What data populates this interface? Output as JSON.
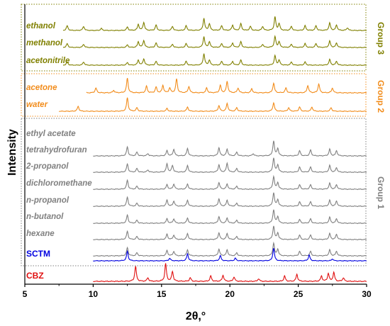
{
  "chart_data": {
    "type": "line",
    "xlabel": "2θ,°",
    "ylabel": "Intensity",
    "xlim": [
      5,
      30
    ],
    "xticks": [
      5,
      10,
      15,
      20,
      25,
      30
    ],
    "colors": {
      "group3": "#808000",
      "group2": "#f28c1b",
      "group1": "#808080",
      "SCTM": "#0000e0",
      "CBZ": "#e01010"
    },
    "groups": [
      {
        "name": "Group 3",
        "color": "#808000",
        "series": [
          "ethanol",
          "methanol",
          "acetonitrile"
        ]
      },
      {
        "name": "Group 2",
        "color": "#f28c1b",
        "series": [
          "acetone",
          "water"
        ]
      },
      {
        "name": "Group 1",
        "color": "#808080",
        "series": [
          "ethyl acetate",
          "tetrahydrofuran",
          "2-propanol",
          "dichloromethane",
          "n-propanol",
          "n-butanol",
          "hexane"
        ]
      }
    ],
    "series": [
      {
        "name": "ethanol",
        "color": "#808000",
        "start": 7.8,
        "peaks": [
          [
            8.1,
            0.35
          ],
          [
            9.3,
            0.3
          ],
          [
            10.6,
            0.15
          ],
          [
            12.5,
            0.25
          ],
          [
            13.3,
            0.45
          ],
          [
            13.7,
            0.6
          ],
          [
            14.6,
            0.4
          ],
          [
            15.8,
            0.3
          ],
          [
            16.8,
            0.35
          ],
          [
            18.1,
            0.9
          ],
          [
            18.5,
            0.5
          ],
          [
            19.4,
            0.35
          ],
          [
            20.2,
            0.4
          ],
          [
            20.8,
            0.5
          ],
          [
            21.5,
            0.3
          ],
          [
            22.4,
            0.3
          ],
          [
            23.3,
            1.0
          ],
          [
            23.6,
            0.5
          ],
          [
            24.5,
            0.3
          ],
          [
            25.5,
            0.35
          ],
          [
            26.3,
            0.35
          ],
          [
            27.3,
            0.55
          ],
          [
            27.8,
            0.4
          ],
          [
            28.6,
            0.2
          ]
        ]
      },
      {
        "name": "methanol",
        "color": "#808000",
        "start": 7.8,
        "peaks": [
          [
            8.1,
            0.3
          ],
          [
            9.3,
            0.25
          ],
          [
            12.5,
            0.2
          ],
          [
            13.3,
            0.45
          ],
          [
            13.7,
            0.55
          ],
          [
            14.6,
            0.35
          ],
          [
            15.8,
            0.25
          ],
          [
            16.8,
            0.3
          ],
          [
            18.1,
            0.85
          ],
          [
            18.5,
            0.45
          ],
          [
            19.4,
            0.3
          ],
          [
            20.2,
            0.35
          ],
          [
            20.8,
            0.45
          ],
          [
            22.4,
            0.25
          ],
          [
            23.3,
            0.85
          ],
          [
            23.6,
            0.45
          ],
          [
            24.5,
            0.25
          ],
          [
            25.5,
            0.3
          ],
          [
            26.3,
            0.3
          ],
          [
            27.3,
            0.5
          ],
          [
            27.8,
            0.35
          ]
        ]
      },
      {
        "name": "acetonitrile",
        "color": "#808000",
        "start": 7.8,
        "peaks": [
          [
            8.1,
            0.25
          ],
          [
            9.3,
            0.25
          ],
          [
            12.5,
            0.2
          ],
          [
            13.3,
            0.4
          ],
          [
            13.7,
            0.5
          ],
          [
            14.6,
            0.3
          ],
          [
            16.8,
            0.3
          ],
          [
            18.1,
            0.9
          ],
          [
            18.5,
            0.4
          ],
          [
            19.4,
            0.3
          ],
          [
            20.2,
            0.3
          ],
          [
            20.8,
            0.4
          ],
          [
            23.3,
            0.75
          ],
          [
            23.6,
            0.4
          ],
          [
            24.5,
            0.25
          ],
          [
            25.5,
            0.25
          ],
          [
            27.3,
            0.45
          ],
          [
            27.8,
            0.3
          ]
        ]
      },
      {
        "name": "acetone",
        "color": "#f28c1b",
        "start": 9.5,
        "peaks": [
          [
            10.2,
            0.3
          ],
          [
            11.5,
            0.15
          ],
          [
            12.5,
            0.9
          ],
          [
            13.9,
            0.4
          ],
          [
            14.6,
            0.35
          ],
          [
            15.1,
            0.45
          ],
          [
            15.6,
            0.3
          ],
          [
            16.1,
            0.85
          ],
          [
            17.0,
            0.4
          ],
          [
            18.3,
            0.3
          ],
          [
            19.3,
            0.45
          ],
          [
            19.8,
            0.7
          ],
          [
            20.6,
            0.3
          ],
          [
            21.6,
            0.25
          ],
          [
            23.2,
            0.6
          ],
          [
            24.1,
            0.3
          ],
          [
            25.7,
            0.45
          ],
          [
            26.5,
            0.55
          ],
          [
            27.5,
            0.3
          ]
        ]
      },
      {
        "name": "water",
        "color": "#f28c1b",
        "start": 7.5,
        "peaks": [
          [
            8.9,
            0.35
          ],
          [
            12.5,
            0.95
          ],
          [
            13.2,
            0.25
          ],
          [
            15.4,
            0.2
          ],
          [
            16.9,
            0.3
          ],
          [
            19.2,
            0.4
          ],
          [
            19.8,
            0.55
          ],
          [
            20.5,
            0.25
          ],
          [
            23.2,
            0.6
          ],
          [
            24.3,
            0.25
          ],
          [
            25.1,
            0.3
          ],
          [
            26.0,
            0.3
          ],
          [
            27.4,
            0.25
          ]
        ]
      },
      {
        "name": "ethyl acetate",
        "color": "#808080",
        "start": 10.0,
        "peaks": [
          [
            12.5,
            0.6
          ],
          [
            13.2,
            0.25
          ],
          [
            14.0,
            0.15
          ],
          [
            15.4,
            0.35
          ],
          [
            15.9,
            0.45
          ],
          [
            16.9,
            0.5
          ],
          [
            19.2,
            0.55
          ],
          [
            19.8,
            0.45
          ],
          [
            20.5,
            0.25
          ],
          [
            21.7,
            0.15
          ],
          [
            23.2,
            1.0
          ],
          [
            23.5,
            0.5
          ],
          [
            25.1,
            0.35
          ],
          [
            25.9,
            0.4
          ],
          [
            27.3,
            0.45
          ],
          [
            27.8,
            0.35
          ]
        ]
      },
      {
        "name": "tetrahydrofuran",
        "color": "#808080",
        "start": 10.0,
        "peaks": [
          [
            12.5,
            0.55
          ],
          [
            13.2,
            0.25
          ],
          [
            14.0,
            0.15
          ],
          [
            15.4,
            0.55
          ],
          [
            15.8,
            0.45
          ],
          [
            16.9,
            0.45
          ],
          [
            19.2,
            0.5
          ],
          [
            19.8,
            0.6
          ],
          [
            20.5,
            0.25
          ],
          [
            23.2,
            0.95
          ],
          [
            23.5,
            0.5
          ],
          [
            25.1,
            0.35
          ],
          [
            25.9,
            0.35
          ],
          [
            27.3,
            0.45
          ],
          [
            27.8,
            0.3
          ]
        ]
      },
      {
        "name": "2-propanol",
        "color": "#808080",
        "start": 10.0,
        "peaks": [
          [
            12.5,
            0.6
          ],
          [
            13.2,
            0.2
          ],
          [
            15.4,
            0.3
          ],
          [
            15.9,
            0.35
          ],
          [
            16.9,
            0.35
          ],
          [
            19.2,
            0.45
          ],
          [
            19.8,
            0.35
          ],
          [
            20.5,
            0.2
          ],
          [
            23.2,
            0.85
          ],
          [
            23.5,
            0.45
          ],
          [
            25.1,
            0.3
          ],
          [
            25.9,
            0.3
          ],
          [
            27.3,
            0.4
          ],
          [
            27.8,
            0.3
          ]
        ]
      },
      {
        "name": "dichloromethane",
        "color": "#808080",
        "start": 10.0,
        "peaks": [
          [
            12.5,
            0.6
          ],
          [
            13.2,
            0.2
          ],
          [
            15.4,
            0.4
          ],
          [
            15.9,
            0.35
          ],
          [
            16.9,
            0.4
          ],
          [
            19.2,
            0.5
          ],
          [
            19.8,
            0.4
          ],
          [
            20.5,
            0.2
          ],
          [
            23.2,
            0.9
          ],
          [
            23.5,
            0.45
          ],
          [
            25.1,
            0.3
          ],
          [
            25.9,
            0.3
          ],
          [
            27.3,
            0.4
          ],
          [
            27.8,
            0.35
          ]
        ]
      },
      {
        "name": "n-propanol",
        "color": "#808080",
        "start": 10.0,
        "peaks": [
          [
            12.5,
            0.55
          ],
          [
            13.2,
            0.2
          ],
          [
            15.4,
            0.3
          ],
          [
            15.9,
            0.3
          ],
          [
            16.9,
            0.35
          ],
          [
            19.2,
            0.45
          ],
          [
            19.8,
            0.35
          ],
          [
            20.5,
            0.2
          ],
          [
            23.2,
            0.9
          ],
          [
            23.5,
            0.45
          ],
          [
            25.1,
            0.25
          ],
          [
            25.9,
            0.3
          ],
          [
            27.3,
            0.4
          ],
          [
            27.8,
            0.3
          ]
        ]
      },
      {
        "name": "n-butanol",
        "color": "#808080",
        "start": 10.0,
        "peaks": [
          [
            12.5,
            0.55
          ],
          [
            13.2,
            0.2
          ],
          [
            15.4,
            0.35
          ],
          [
            15.9,
            0.3
          ],
          [
            16.9,
            0.4
          ],
          [
            19.2,
            0.45
          ],
          [
            19.8,
            0.4
          ],
          [
            20.5,
            0.2
          ],
          [
            23.2,
            0.9
          ],
          [
            23.5,
            0.45
          ],
          [
            25.1,
            0.3
          ],
          [
            25.9,
            0.3
          ],
          [
            27.3,
            0.4
          ],
          [
            27.8,
            0.35
          ]
        ]
      },
      {
        "name": "hexane",
        "color": "#808080",
        "start": 10.0,
        "peaks": [
          [
            12.5,
            0.55
          ],
          [
            13.2,
            0.2
          ],
          [
            15.4,
            0.35
          ],
          [
            15.9,
            0.3
          ],
          [
            16.9,
            0.4
          ],
          [
            19.2,
            0.45
          ],
          [
            19.8,
            0.4
          ],
          [
            20.5,
            0.2
          ],
          [
            23.2,
            0.85
          ],
          [
            23.5,
            0.45
          ],
          [
            25.1,
            0.3
          ],
          [
            25.9,
            0.3
          ],
          [
            27.3,
            0.4
          ],
          [
            27.8,
            0.3
          ]
        ]
      },
      {
        "name": "SCTM",
        "color": "#0000e0",
        "start": 10.0,
        "peaks": [
          [
            12.5,
            0.75
          ],
          [
            15.6,
            0.2
          ],
          [
            16.9,
            0.55
          ],
          [
            19.3,
            0.4
          ],
          [
            20.4,
            0.2
          ],
          [
            23.2,
            1.0
          ],
          [
            25.8,
            0.45
          ],
          [
            27.5,
            0.15
          ]
        ]
      },
      {
        "name": "CBZ",
        "color": "#e01010",
        "start": 10.0,
        "peaks": [
          [
            13.1,
            0.85
          ],
          [
            14.0,
            0.2
          ],
          [
            15.3,
            1.0
          ],
          [
            15.8,
            0.55
          ],
          [
            17.1,
            0.2
          ],
          [
            18.6,
            0.3
          ],
          [
            19.5,
            0.35
          ],
          [
            20.3,
            0.25
          ],
          [
            22.1,
            0.15
          ],
          [
            24.0,
            0.3
          ],
          [
            24.9,
            0.4
          ],
          [
            26.7,
            0.3
          ],
          [
            27.2,
            0.45
          ],
          [
            27.6,
            0.5
          ],
          [
            28.3,
            0.2
          ]
        ]
      }
    ]
  }
}
